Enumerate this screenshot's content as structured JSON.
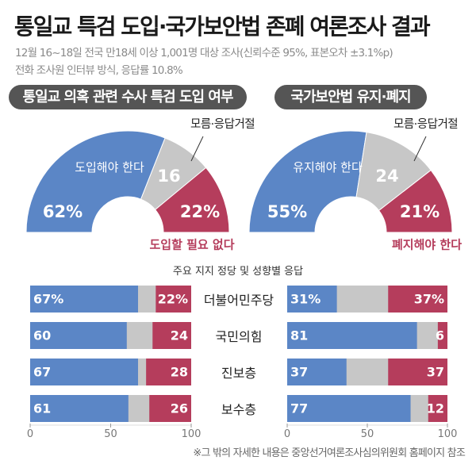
{
  "title": "통일교 특검 도입·국가보안법 존폐 여론조사 결과",
  "subtitle": [
    "12월 16~18일 전국 만18세 이상 1,001명 대상 조사(신뢰수준 95%, 표본오차 ±3.1%p)",
    "전화 조사원 인터뷰 방식, 응답률 10.8%"
  ],
  "colors": {
    "blue": "#5b86c6",
    "gray": "#c7c7c7",
    "red": "#b53d5c",
    "pill": "#555555"
  },
  "footnote": "※그 밖의 자세한 내용은 중앙선거여론조사심의위원회 홈페이지 참조",
  "chart_data": [
    {
      "type": "pie",
      "shape": "half-donut",
      "title": "통일교 의혹 관련 수사 특검 도입 여부",
      "slices": [
        {
          "label": "도입해야 한다",
          "value": 62,
          "text": "62%",
          "color": "#5b86c6"
        },
        {
          "label": "모름·응답거절",
          "value": 16,
          "text": "16",
          "color": "#c7c7c7"
        },
        {
          "label": "도입할 필요 없다",
          "value": 22,
          "text": "22%",
          "color": "#b53d5c"
        }
      ]
    },
    {
      "type": "pie",
      "shape": "half-donut",
      "title": "국가보안법 유지·폐지",
      "slices": [
        {
          "label": "유지해야 한다",
          "value": 55,
          "text": "55%",
          "color": "#5b86c6"
        },
        {
          "label": "모름·응답거절",
          "value": 24,
          "text": "24",
          "color": "#c7c7c7"
        },
        {
          "label": "폐지해야 한다",
          "value": 21,
          "text": "21%",
          "color": "#b53d5c"
        }
      ]
    },
    {
      "type": "bar",
      "orientation": "horizontal",
      "stacked": true,
      "title": "주요 지지 정당 및 성향별 응답",
      "categories": [
        "더불어민주당",
        "국민의힘",
        "진보층",
        "보수층"
      ],
      "xlim": [
        0,
        100
      ],
      "xticks": [
        "0",
        "50",
        "100"
      ],
      "left": {
        "yes": [
          67,
          60,
          67,
          61
        ],
        "no": [
          22,
          24,
          28,
          26
        ],
        "yes_text": [
          "67%",
          "60",
          "67",
          "61"
        ],
        "no_text": [
          "22%",
          "24",
          "28",
          "26"
        ]
      },
      "right": {
        "yes": [
          31,
          81,
          37,
          77
        ],
        "no": [
          37,
          6,
          37,
          12
        ],
        "yes_text": [
          "31%",
          "81",
          "37",
          "77"
        ],
        "no_text": [
          "37%",
          "6",
          "37",
          "12"
        ]
      }
    }
  ]
}
